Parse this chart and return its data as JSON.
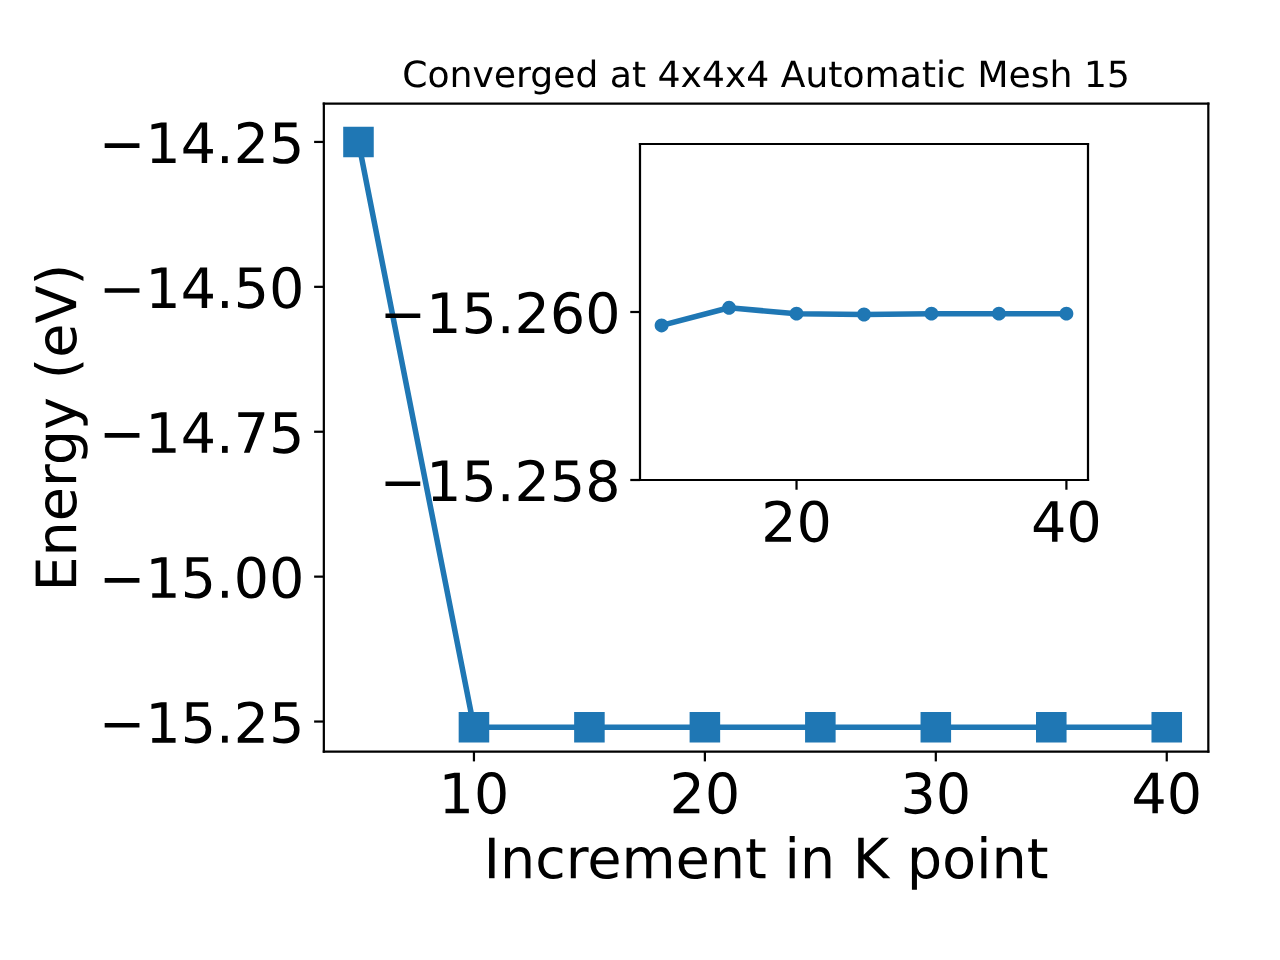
{
  "chart_data": [
    {
      "type": "line",
      "title": "Converged at 4x4x4 Automatic Mesh 15",
      "xlabel": "Increment in K point",
      "ylabel": "Energy (eV)",
      "x": [
        5,
        10,
        15,
        20,
        25,
        30,
        35,
        40
      ],
      "series": [
        {
          "color": "#1f77b4",
          "values": [
            -14.25,
            -15.26,
            -15.26,
            -15.26,
            -15.26,
            -15.26,
            -15.26,
            -15.26
          ]
        }
      ],
      "marker": "square",
      "line_style": "solid",
      "xlim": [
        3.5,
        41.8
      ],
      "ylim": [
        -15.302,
        -14.184
      ],
      "xticks": [
        10,
        20,
        30,
        40
      ],
      "yticks": [
        {
          "value": -14.25,
          "label": "−14.25"
        },
        {
          "value": -14.5,
          "label": "−14.50"
        },
        {
          "value": -14.75,
          "label": "−14.75"
        },
        {
          "value": -15.0,
          "label": "−15.00"
        },
        {
          "value": -15.25,
          "label": "−15.25"
        }
      ]
    },
    {
      "type": "line",
      "x": [
        10,
        15,
        20,
        25,
        30,
        35,
        40
      ],
      "series": [
        {
          "color": "#1f77b4",
          "values": [
            -15.25984,
            -15.26005,
            -15.25998,
            -15.25997,
            -15.25998,
            -15.25998,
            -15.25998
          ]
        }
      ],
      "marker": "circle",
      "line_style": "solid",
      "xlim": [
        8.4,
        41.6
      ],
      "ylim": [
        -15.258,
        -15.262
      ],
      "xticks": [
        20,
        40
      ],
      "yticks": [
        {
          "value": -15.26,
          "label": "−15.260"
        },
        {
          "value": -15.258,
          "label": "−15.258"
        }
      ]
    }
  ]
}
